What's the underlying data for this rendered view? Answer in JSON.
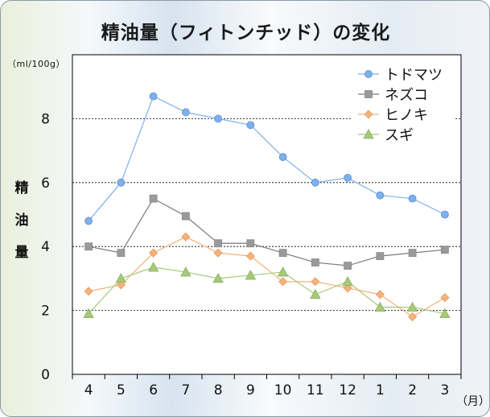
{
  "chart_data": {
    "type": "line",
    "title": "精油量（フィトンチッド）の変化",
    "ylabel": "精油量",
    "yunit": "（ml/100g）",
    "xunit": "（月）",
    "categories": [
      "4",
      "5",
      "6",
      "7",
      "8",
      "9",
      "10",
      "11",
      "12",
      "1",
      "2",
      "3"
    ],
    "ylim": [
      0,
      10
    ],
    "yticks": [
      0,
      2,
      4,
      6,
      8
    ],
    "grid": "horizontal-dashed",
    "legend_position": "top-right",
    "series": [
      {
        "name": "トドマツ",
        "color": "#7fb0e8",
        "marker": "circle",
        "values": [
          4.8,
          6.0,
          8.7,
          8.2,
          8.0,
          7.8,
          6.8,
          6.0,
          6.15,
          5.6,
          5.5,
          5.0
        ]
      },
      {
        "name": "ネズコ",
        "color": "#9a9a9a",
        "marker": "square",
        "values": [
          4.0,
          3.8,
          5.5,
          4.95,
          4.1,
          4.1,
          3.8,
          3.5,
          3.4,
          3.7,
          3.8,
          3.9
        ]
      },
      {
        "name": "ヒノキ",
        "color": "#f5b27a",
        "marker": "diamond",
        "values": [
          2.6,
          2.8,
          3.8,
          4.3,
          3.8,
          3.7,
          2.9,
          2.9,
          2.7,
          2.5,
          1.8,
          2.4
        ]
      },
      {
        "name": "スギ",
        "color": "#a6c97a",
        "marker": "triangle",
        "values": [
          1.9,
          3.0,
          3.35,
          3.2,
          3.0,
          3.1,
          3.2,
          2.5,
          2.9,
          2.1,
          2.1,
          1.9
        ]
      }
    ]
  }
}
